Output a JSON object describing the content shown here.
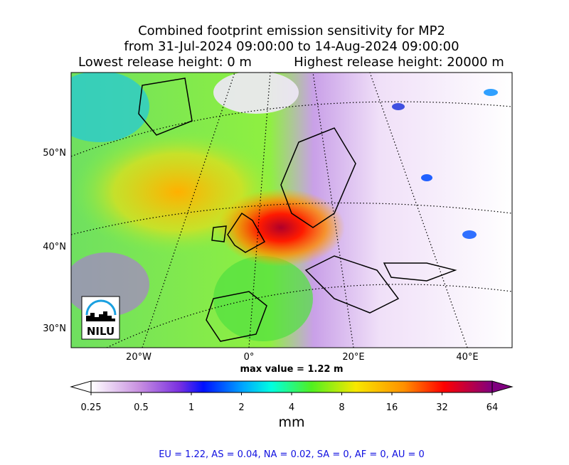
{
  "header": {
    "title_lines": [
      "Combined footprint emission sensitivity for MP2",
      "from 31-Jul-2024 09:00:00 to 14-Aug-2024 09:00:00"
    ],
    "lowest": "Lowest release height: 0 m",
    "highest": "Highest release height: 20000 m"
  },
  "map": {
    "lat_labels": [
      "50°N",
      "40°N",
      "30°N"
    ],
    "lon_labels": [
      "20°W",
      "0°",
      "20°E",
      "40°E"
    ],
    "max_value": "max value = 1.22 m",
    "logo": "NILU"
  },
  "colorbar": {
    "ticks": [
      "0.25",
      "0.5",
      "1",
      "2",
      "4",
      "8",
      "16",
      "32",
      "64"
    ],
    "unit": "mm"
  },
  "footer": "EU = 1.22,  AS = 0.04,  NA = 0.02,  SA = 0,  AF = 0,  AU = 0"
}
